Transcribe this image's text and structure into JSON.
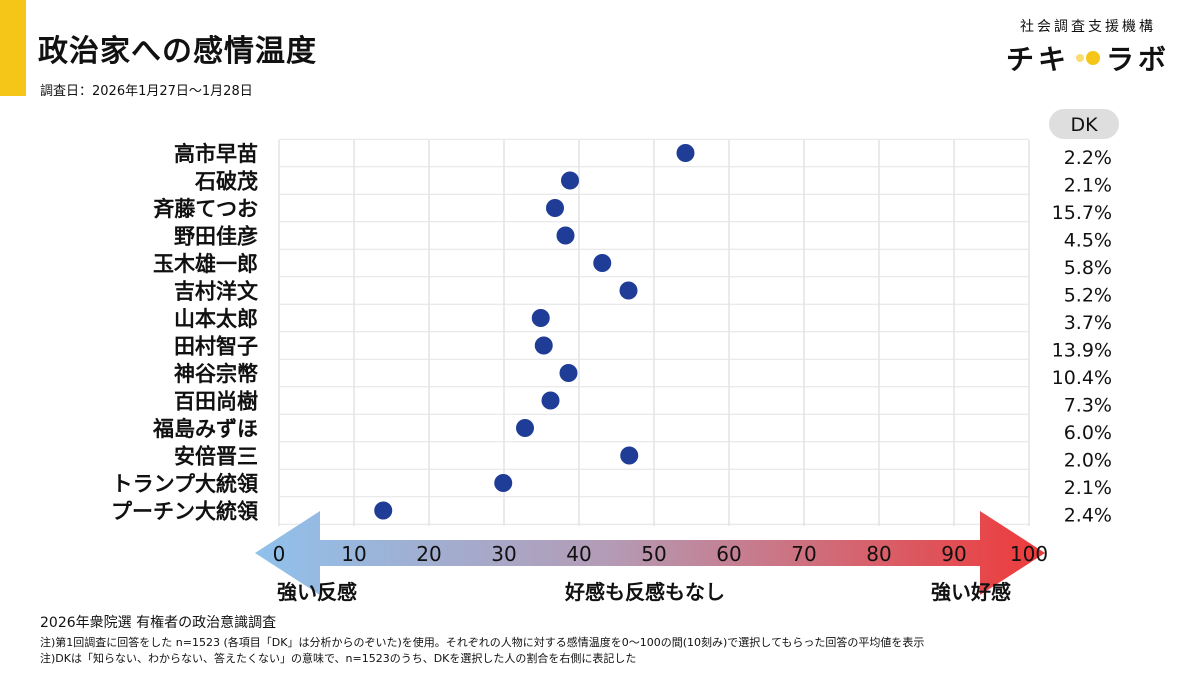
{
  "header": {
    "title": "政治家への感情温度",
    "survey_date": "調査日：2026年1月27日～1月28日"
  },
  "brand": {
    "org": "社会調査支援機構",
    "logo_left": "チキ",
    "logo_right": "ラボ",
    "accent_color": "#f5c518"
  },
  "chart_data": {
    "type": "scatter",
    "title": "政治家への感情温度",
    "xlim": [
      0,
      100
    ],
    "xticks": [
      0,
      10,
      20,
      30,
      40,
      50,
      60,
      70,
      80,
      90,
      100
    ],
    "grid": true,
    "point_color": "#1f3c96",
    "dk_header": "DK",
    "scale_labels": {
      "left": "強い反感",
      "center": "好感も反感もなし",
      "right": "強い好感"
    },
    "items": [
      {
        "name": "高市早苗",
        "value": 54.2,
        "dk": "2.2%"
      },
      {
        "name": "石破茂",
        "value": 38.8,
        "dk": "2.1%"
      },
      {
        "name": "斉藤てつお",
        "value": 36.8,
        "dk": "15.7%"
      },
      {
        "name": "野田佳彦",
        "value": 38.2,
        "dk": "4.5%"
      },
      {
        "name": "玉木雄一郎",
        "value": 43.1,
        "dk": "5.8%"
      },
      {
        "name": "吉村洋文",
        "value": 46.6,
        "dk": "5.2%"
      },
      {
        "name": "山本太郎",
        "value": 34.9,
        "dk": "3.7%"
      },
      {
        "name": "田村智子",
        "value": 35.3,
        "dk": "13.9%"
      },
      {
        "name": "神谷宗幣",
        "value": 38.6,
        "dk": "10.4%"
      },
      {
        "name": "百田尚樹",
        "value": 36.2,
        "dk": "7.3%"
      },
      {
        "name": "福島みずほ",
        "value": 32.8,
        "dk": "6.0%"
      },
      {
        "name": "安倍晋三",
        "value": 46.7,
        "dk": "2.0%"
      },
      {
        "name": "トランプ大統領",
        "value": 29.9,
        "dk": "2.1%"
      },
      {
        "name": "プーチン大統領",
        "value": 13.9,
        "dk": "2.4%"
      }
    ]
  },
  "footer": {
    "survey_name": "2026年衆院選 有権者の政治意識調査",
    "note1": "注)第1回調査に回答をした n=1523 (各項目「DK」は分析からのぞいた)を使用。それぞれの人物に対する感情温度を0～100の間(10刻み)で選択してもらった回答の平均値を表示",
    "note2": "注)DKは「知らない、わからない、答えたくない」の意味で、n=1523のうち、DKを選択した人の割合を右側に表記した"
  }
}
